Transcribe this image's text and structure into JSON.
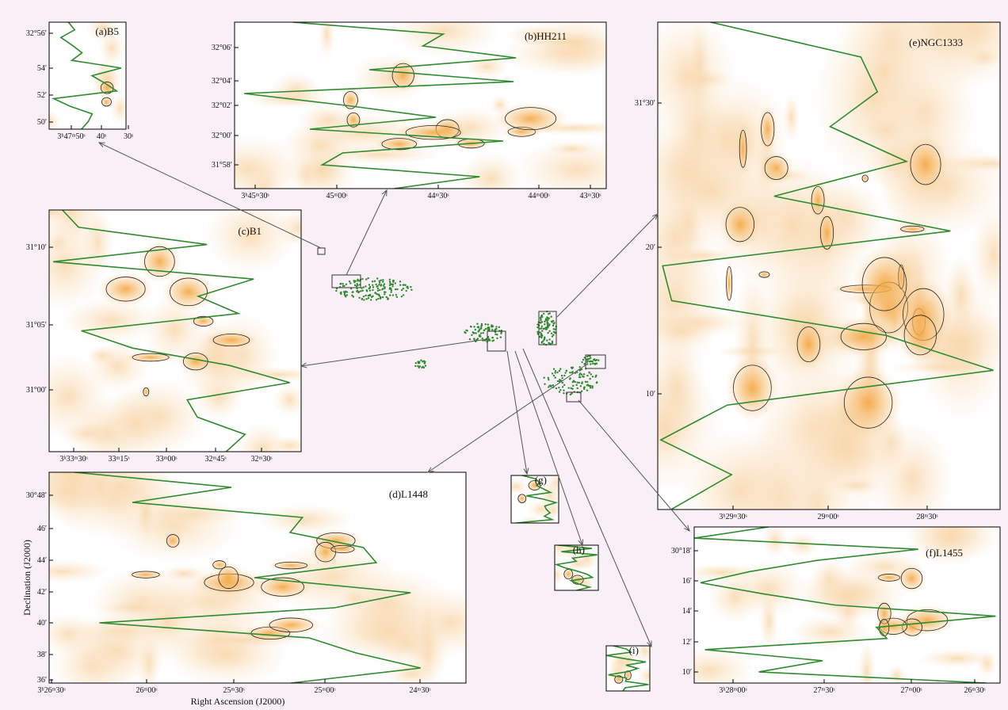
{
  "panels": [
    {
      "label": "(a)B5",
      "y_ticks": [
        "32°56′",
        "54′",
        "52′",
        "50′"
      ],
      "x_ticks": [
        "3ʰ47ᵐ50ˢ",
        "40ˢ",
        "30ˢ"
      ]
    },
    {
      "label": "(b)HH211",
      "y_ticks": [
        "32°06′",
        "32°04′",
        "32°02′",
        "32°00′",
        "31°58′"
      ],
      "x_ticks": [
        "3ʰ45ᵐ30ˢ",
        "45ᵐ00ˢ",
        "44ᵐ30ˢ",
        "44ᵐ00ˢ",
        "43ᵐ30ˢ"
      ]
    },
    {
      "label": "(c)B1",
      "y_ticks": [
        "31°10′",
        "31°05′",
        "31°00′"
      ],
      "x_ticks": [
        "3ʰ33ᵐ30ˢ",
        "33ᵐ15ˢ",
        "33ᵐ00ˢ",
        "32ᵐ45ˢ",
        "32ᵐ30ˢ"
      ]
    },
    {
      "label": "(d)L1448",
      "y_ticks": [
        "30°48′",
        "46′",
        "44′",
        "42′",
        "40′",
        "38′",
        "36′"
      ],
      "x_ticks": [
        "3ʰ26ᵐ30ˢ",
        "26ᵐ00ˢ",
        "25ᵐ30ˢ",
        "25ᵐ00ˢ",
        "24ᵐ30ˢ"
      ],
      "y_label": "Declination (J2000)",
      "x_label": "Right Ascension (J2000)"
    },
    {
      "label": "(e)NGC1333",
      "y_ticks": [
        "31°30′",
        "20′",
        "10′"
      ],
      "x_ticks": [
        "3ʰ29ᵐ30ˢ",
        "29ᵐ00ˢ",
        "28ᵐ30ˢ"
      ]
    },
    {
      "label": "(f)L1455",
      "y_ticks": [
        "30°18′",
        "16′",
        "14′",
        "12′",
        "10′"
      ],
      "x_ticks": [
        "3ʰ28ᵐ00ˢ",
        "27ᵐ30ˢ",
        "27ᵐ00ˢ",
        "26ᵐ30ˢ"
      ]
    },
    {
      "label": "(g)"
    },
    {
      "label": "(h)"
    },
    {
      "label": "(i)"
    }
  ]
}
